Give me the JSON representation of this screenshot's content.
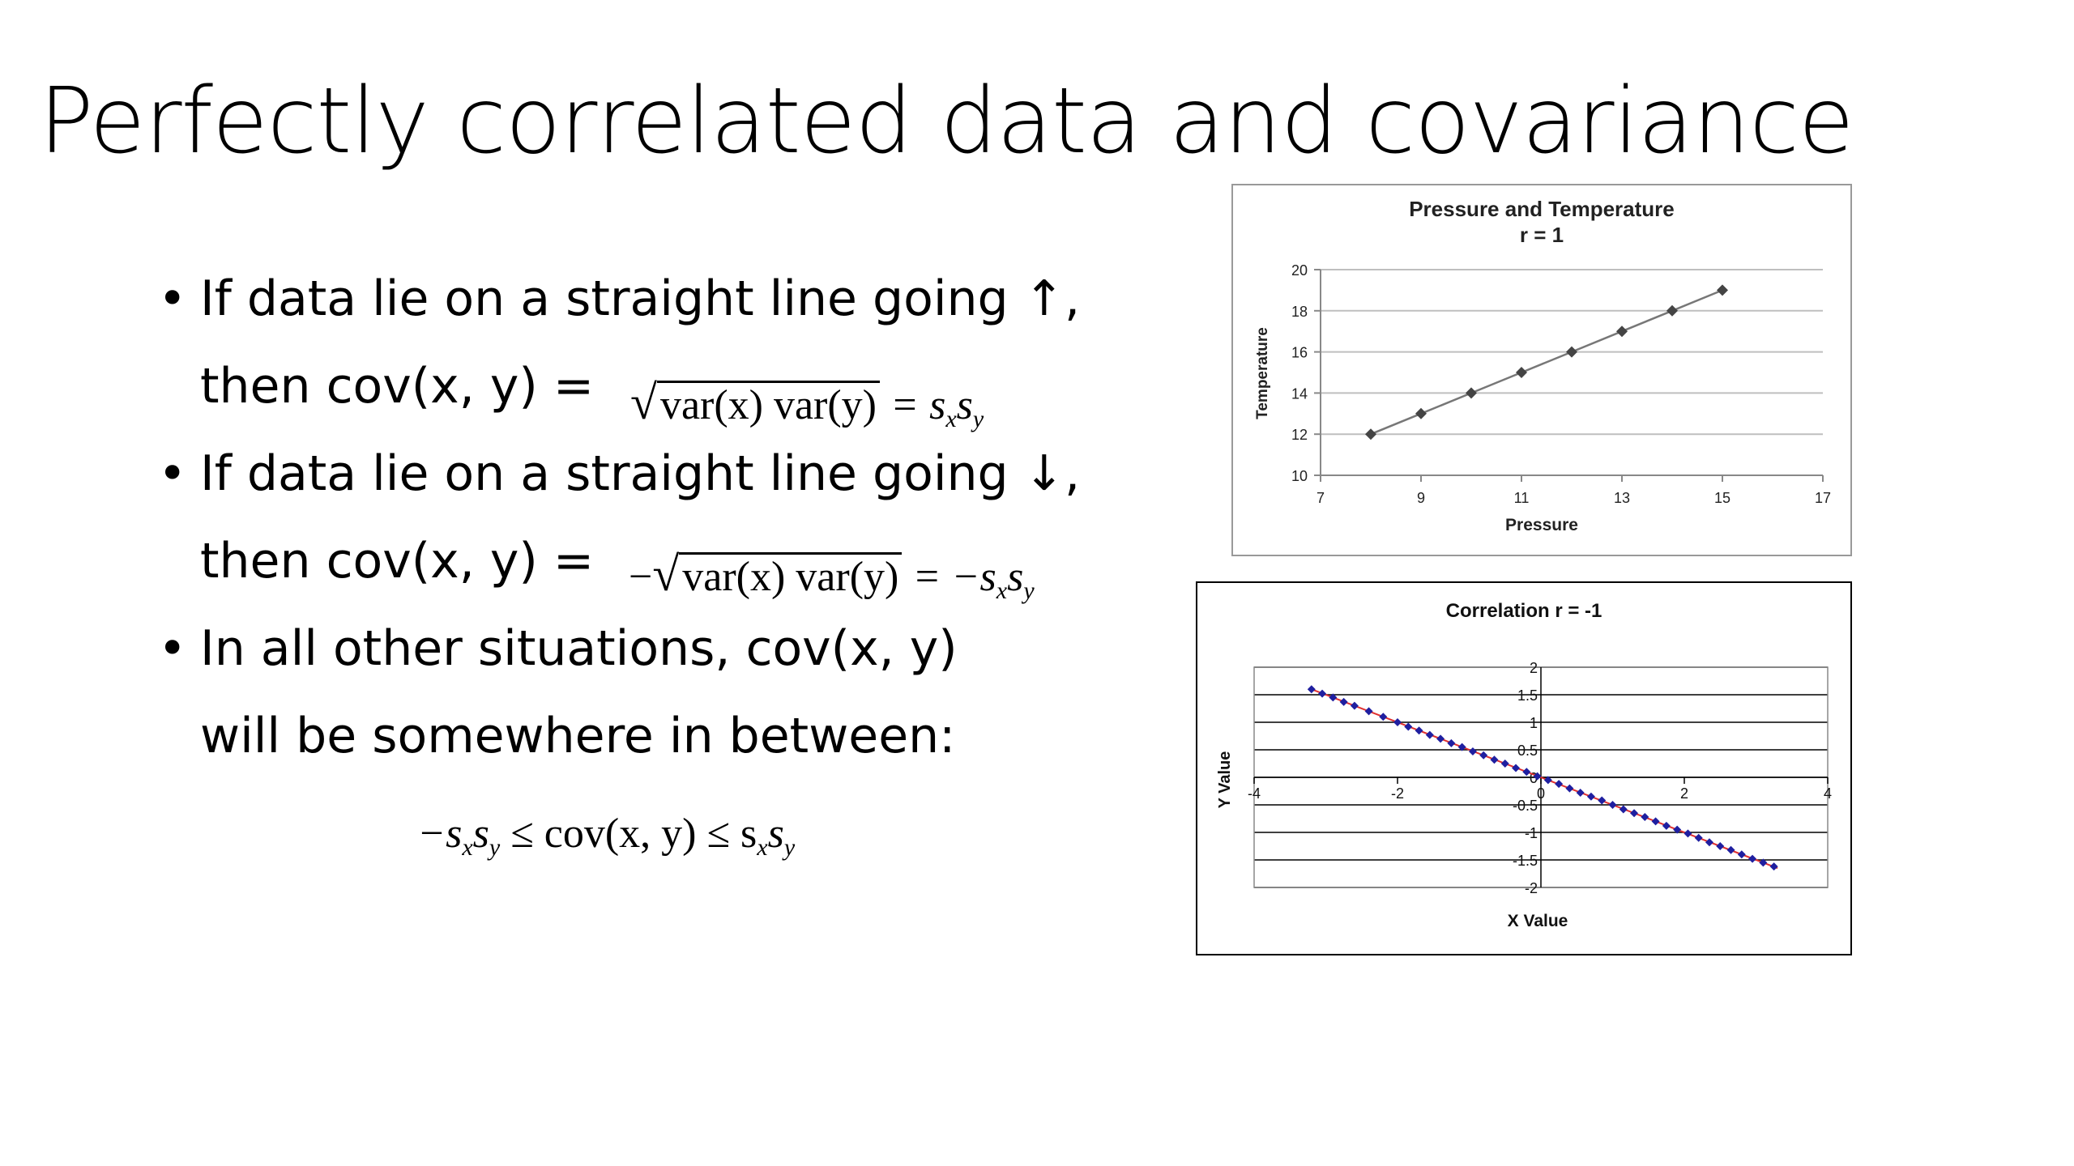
{
  "slide": {
    "title": "Perfectly correlated data and covariance",
    "bullet_char": "•",
    "bullets": [
      {
        "line1": "If data lie on a straight line going ↑,",
        "line2": "then cov(x, y) ="
      },
      {
        "line1": "If data lie on a straight line going ↓,",
        "line2": "then cov(x, y) ="
      },
      {
        "line1": "In all other situations, cov(x, y)",
        "line2": "will be somewhere in between:"
      }
    ],
    "formulas": {
      "f1_radicand": "var(x) var(y)",
      "f1_rhs": "= s",
      "f2_minus": "−",
      "f2_radicand": "var(x) var(y)",
      "f2_rhs": "= −s",
      "sub_x": "x",
      "sub_y": "y",
      "s": "s",
      "f3_left": "−s",
      "f3_mid": "≤ cov(x, y) ≤ s"
    }
  },
  "chart_data": [
    {
      "type": "line",
      "title": "Pressure and Temperature",
      "subtitle": "r = 1",
      "xlabel": "Pressure",
      "ylabel": "Temperature",
      "xlim": [
        7,
        17
      ],
      "ylim": [
        10,
        20
      ],
      "xticks": [
        7,
        9,
        11,
        13,
        15,
        17
      ],
      "yticks": [
        10,
        12,
        14,
        16,
        18,
        20
      ],
      "grid": true,
      "series": [
        {
          "x": [
            8,
            9,
            10,
            11,
            12,
            13,
            14,
            15
          ],
          "y": [
            12,
            13,
            14,
            15,
            16,
            17,
            18,
            19
          ]
        }
      ],
      "colors": {
        "line": "#777777",
        "marker": "#444444",
        "grid": "#bfbfbf"
      }
    },
    {
      "type": "scatter",
      "title": "Correlation r = -1",
      "xlabel": "X Value",
      "ylabel": "Y Value",
      "xlim": [
        -4,
        4
      ],
      "ylim": [
        -2,
        2
      ],
      "xtick_labels": [
        "-4",
        "-2",
        "0",
        "2",
        "4"
      ],
      "ytick_labels": [
        "2",
        "1.5",
        "1",
        "0.5",
        "0",
        "-0.5",
        "-1",
        "-1.5",
        "-2"
      ],
      "grid": true,
      "trend_line": {
        "x": [
          -3.2,
          3.3
        ],
        "y": [
          1.6,
          -1.65
        ]
      },
      "series": [
        {
          "x": [
            -3.2,
            -3.05,
            -2.9,
            -2.75,
            -2.6,
            -2.4,
            -2.2,
            -2.0,
            -1.85,
            -1.7,
            -1.55,
            -1.4,
            -1.25,
            -1.1,
            -0.95,
            -0.8,
            -0.65,
            -0.5,
            -0.35,
            -0.2,
            -0.05,
            0.1,
            0.25,
            0.4,
            0.55,
            0.7,
            0.85,
            1.0,
            1.15,
            1.3,
            1.45,
            1.6,
            1.75,
            1.9,
            2.05,
            2.2,
            2.35,
            2.5,
            2.65,
            2.8,
            2.95,
            3.1,
            3.25
          ],
          "y": [
            1.6,
            1.52,
            1.45,
            1.37,
            1.3,
            1.2,
            1.1,
            1.0,
            0.92,
            0.85,
            0.77,
            0.7,
            0.62,
            0.55,
            0.47,
            0.4,
            0.32,
            0.25,
            0.17,
            0.1,
            0.02,
            -0.05,
            -0.12,
            -0.2,
            -0.28,
            -0.35,
            -0.42,
            -0.5,
            -0.58,
            -0.65,
            -0.72,
            -0.8,
            -0.88,
            -0.95,
            -1.02,
            -1.1,
            -1.18,
            -1.25,
            -1.32,
            -1.4,
            -1.48,
            -1.55,
            -1.62
          ]
        }
      ],
      "colors": {
        "marker": "#1f1fa0",
        "trend": "#e03030",
        "grid": "#000000"
      }
    }
  ]
}
